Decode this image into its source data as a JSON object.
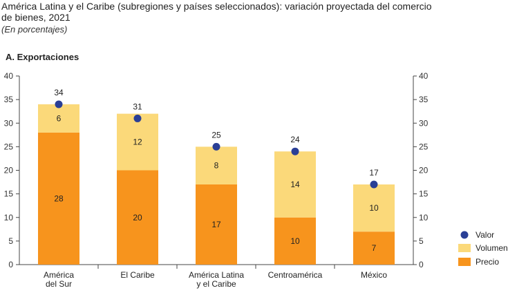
{
  "header": {
    "title": "América Latina y el Caribe (subregiones y países seleccionados): variación proyectada del comercio de bienes, 2021",
    "subtitle": "(En porcentajes)",
    "panel_label": "A. Exportaciones"
  },
  "colors": {
    "precio": "#F7941D",
    "volumen": "#FBD97A",
    "valor": "#2A3F96",
    "axis": "#444444"
  },
  "chart_data": {
    "type": "bar",
    "stacked": true,
    "categories": [
      "América\ndel Sur",
      "El Caribe",
      "América Latina\ny el Caribe",
      "Centroamérica",
      "México"
    ],
    "series": [
      {
        "name": "Precio",
        "values": [
          28,
          20,
          17,
          10,
          7
        ]
      },
      {
        "name": "Volumen",
        "values": [
          6,
          12,
          8,
          14,
          10
        ]
      },
      {
        "name": "Valor",
        "values": [
          34,
          31,
          25,
          24,
          17
        ]
      }
    ],
    "ylim": [
      0,
      40
    ],
    "yticks": [
      0,
      5,
      10,
      15,
      20,
      25,
      30,
      35,
      40
    ],
    "grid": false,
    "legend_position": "bottom-right",
    "secondary_axis": true
  }
}
